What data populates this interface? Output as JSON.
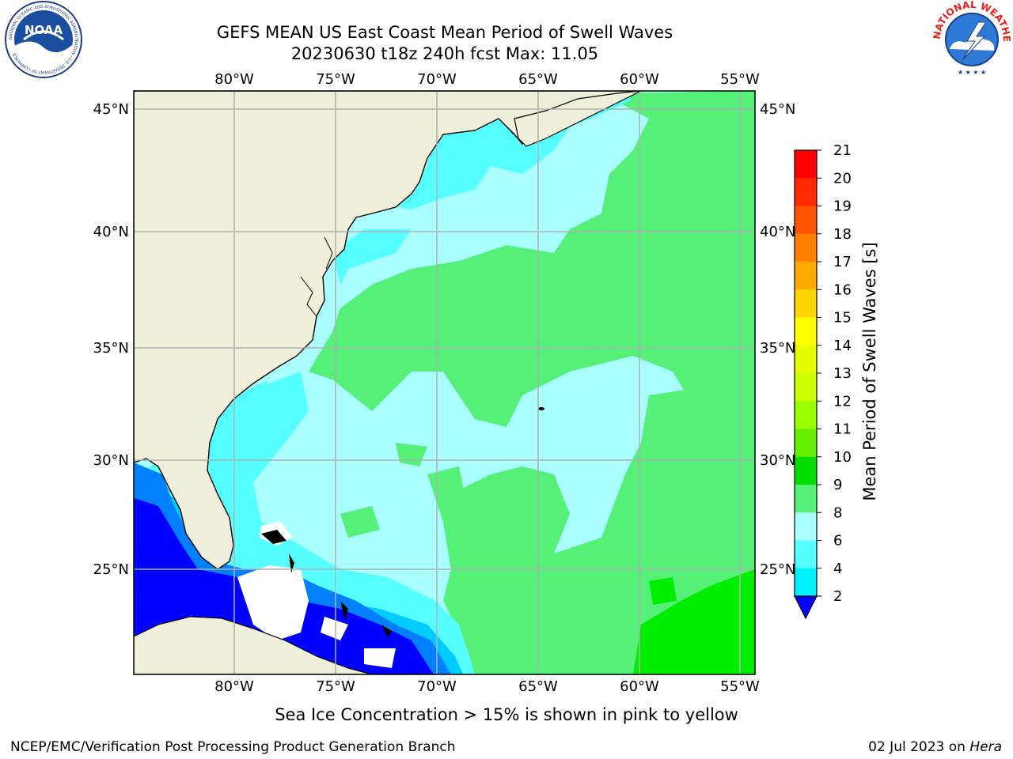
{
  "header": {
    "title_line1": "GEFS MEAN US East Coast Mean Period of Swell Waves",
    "title_line2": "20230630 t18z 240h fcst   Max: 11.05"
  },
  "logos": {
    "left": {
      "text": "NOAA",
      "ring_text": "NATIONAL OCEANIC AND ATMOSPHERIC ADMINISTRATION · U.S. DEPARTMENT OF COMMERCE"
    },
    "right": {
      "ring_text": "NATIONAL WEATHER SERVICE"
    }
  },
  "map": {
    "lon_labels": [
      "80°W",
      "75°W",
      "70°W",
      "65°W",
      "60°W",
      "55°W"
    ],
    "lat_labels": [
      "45°N",
      "40°N",
      "35°N",
      "30°N",
      "25°N"
    ]
  },
  "colorbar": {
    "label": "Mean Period of Swell Waves [s]",
    "ticks": [
      "21",
      "20",
      "19",
      "18",
      "17",
      "16",
      "15",
      "14",
      "13",
      "12",
      "11",
      "10",
      "9",
      "8",
      "6",
      "4",
      "2"
    ],
    "colors": [
      "#ff0000",
      "#ff2a00",
      "#ff5500",
      "#ff8000",
      "#ffaa00",
      "#ffd500",
      "#ffff00",
      "#e6ff00",
      "#ccff00",
      "#99ff00",
      "#66ee00",
      "#00dd00",
      "#55f077",
      "#aaffff",
      "#55ffff",
      "#00f0ff",
      "#0080ff"
    ],
    "under_color": "#0000ff"
  },
  "colors": {
    "land": "#efefdc",
    "ocean_base": "#aaffff",
    "swell_9_10": "#55f077",
    "swell_10_11": "#00ee00",
    "swell_6_8": "#55ffff",
    "swell_4_6": "#00ccff",
    "swell_2_4": "#0080ff",
    "swell_under_2": "#0000ff",
    "grid": "#b0b0b0"
  },
  "footer": {
    "note": "Sea Ice Concentration > 15% is shown in pink to yellow",
    "left": "NCEP/EMC/Verification Post Processing Product Generation Branch",
    "right_date": "02 Jul 2023 on ",
    "right_host": "Hera"
  }
}
